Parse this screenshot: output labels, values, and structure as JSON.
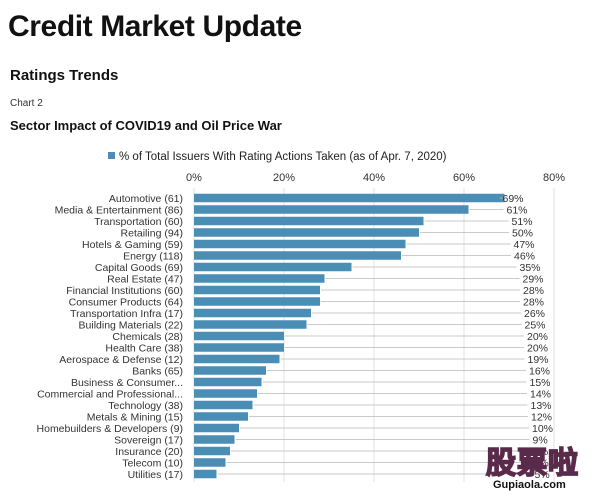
{
  "header": {
    "title": "Credit Market Update",
    "subtitle": "Ratings Trends",
    "chart_number": "Chart 2",
    "chart_title": "Sector Impact of COVID19 and Oil Price War"
  },
  "chart_data": {
    "type": "bar",
    "orientation": "horizontal",
    "title": "Sector Impact of COVID19 and Oil Price War",
    "legend": {
      "label": "% of Total Issuers With Rating Actions Taken (as of Apr. 7, 2020)",
      "position": "top"
    },
    "xlim": [
      0,
      80
    ],
    "x_ticks": [
      "0%",
      "20%",
      "40%",
      "60%",
      "80%"
    ],
    "grid": "vertical",
    "bar_color": "#4a8db5",
    "categories": [
      "Automotive (61)",
      "Media & Entertainment (86)",
      "Transportation (60)",
      "Retailing (94)",
      "Hotels & Gaming (59)",
      "Energy (118)",
      "Capital Goods (69)",
      "Real Estate (47)",
      "Financial Institutions (60)",
      "Consumer Products (64)",
      "Transportation Infra (17)",
      "Building Materials (22)",
      "Chemicals (28)",
      "Health Care (38)",
      "Aerospace & Defense (12)",
      "Banks (65)",
      "Business & Consumer...",
      "Commercial and Professional...",
      "Technology (38)",
      "Metals & Mining (15)",
      "Homebuilders & Developers (9)",
      "Sovereign (17)",
      "Insurance (20)",
      "Telecom (10)",
      "Utilities (17)"
    ],
    "series": [
      {
        "name": "% of Total Issuers With Rating Actions Taken (as of Apr. 7, 2020)",
        "values": [
          69,
          61,
          51,
          50,
          47,
          46,
          35,
          29,
          28,
          28,
          26,
          25,
          20,
          20,
          19,
          16,
          15,
          14,
          13,
          12,
          10,
          9,
          8,
          7,
          5
        ]
      }
    ],
    "value_labels": [
      "69%",
      "61%",
      "51%",
      "50%",
      "47%",
      "46%",
      "35%",
      "29%",
      "28%",
      "28%",
      "26%",
      "25%",
      "20%",
      "20%",
      "19%",
      "16%",
      "15%",
      "14%",
      "13%",
      "12%",
      "10%",
      "9%",
      "8%",
      "7%",
      "5%"
    ]
  },
  "watermark": {
    "text_cn": "股票啦",
    "url": "Gupiaola.com"
  }
}
